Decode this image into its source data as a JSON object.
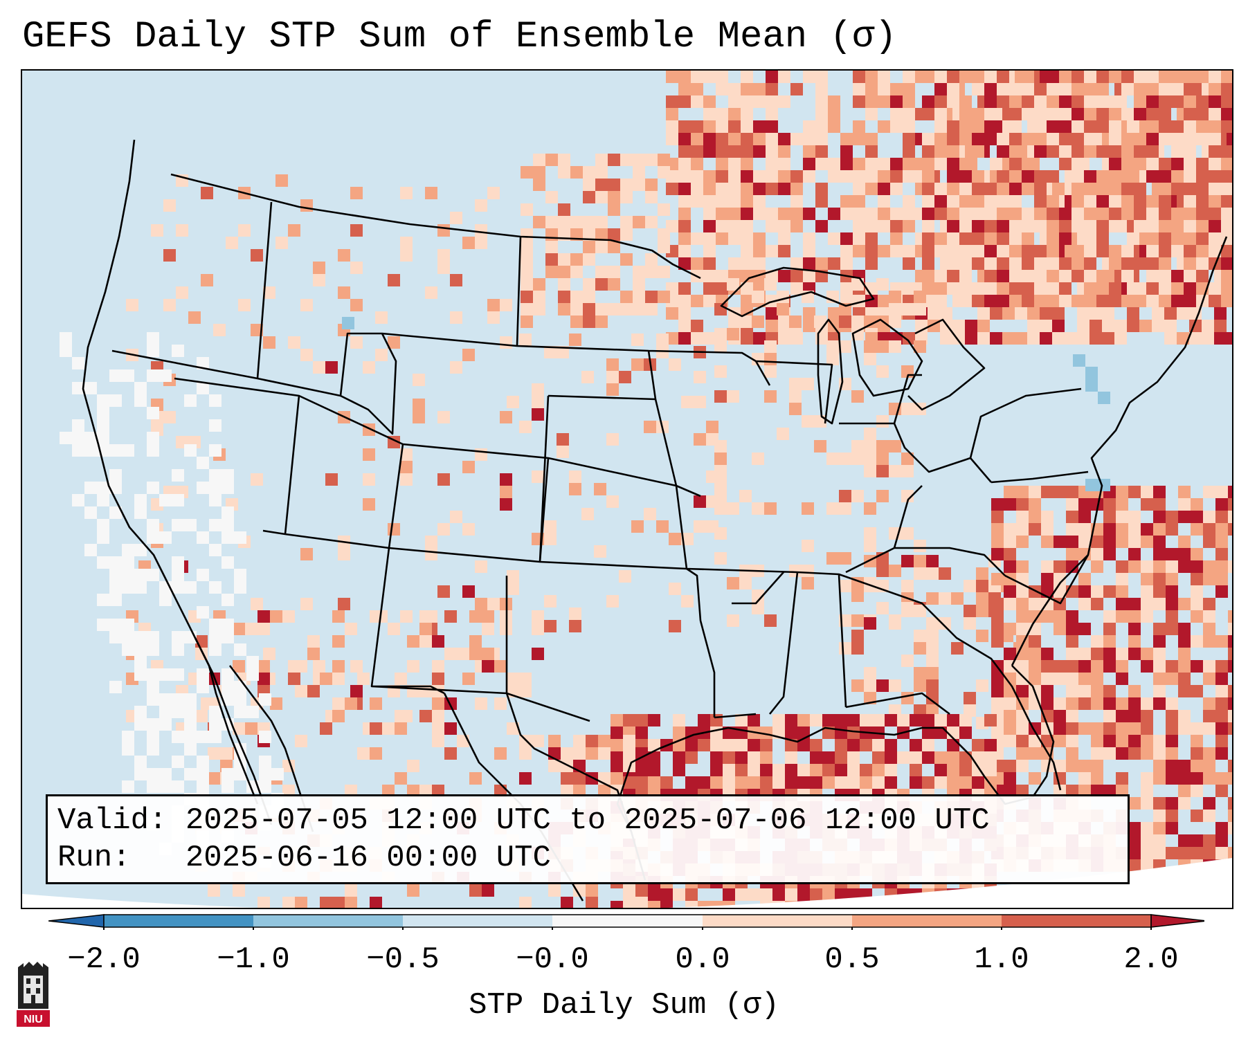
{
  "title": "GEFS Daily STP Sum of Ensemble Mean (σ)",
  "info": {
    "valid_label": "Valid:",
    "valid_value": "2025-07-05 12:00 UTC to 2025-07-06 12:00 UTC",
    "run_label": "Run:",
    "run_value": "2025-06-16 00:00 UTC"
  },
  "colorbar": {
    "label": "STP Daily Sum (σ)",
    "ticks": [
      "−2.0",
      "−1.0",
      "−0.5",
      "−0.0",
      "0.0",
      "0.5",
      "1.0",
      "2.0"
    ],
    "bins": [
      {
        "range": "< -2.0",
        "color": "#2166ac"
      },
      {
        "range": "-2.0 to -1.0",
        "color": "#4393c3"
      },
      {
        "range": "-1.0 to -0.5",
        "color": "#92c5de"
      },
      {
        "range": "-0.5 to -0.0",
        "color": "#d1e5f0"
      },
      {
        "range": "-0.0 to 0.0",
        "color": "#f7f7f7"
      },
      {
        "range": "0.0 to 0.5",
        "color": "#fddbc7"
      },
      {
        "range": "0.5 to 1.0",
        "color": "#f4a582"
      },
      {
        "range": "1.0 to 2.0",
        "color": "#d6604d"
      },
      {
        "range": "> 2.0",
        "color": "#b2182b"
      }
    ]
  },
  "logo": {
    "text": "NIU",
    "color": "#c8102e"
  }
}
